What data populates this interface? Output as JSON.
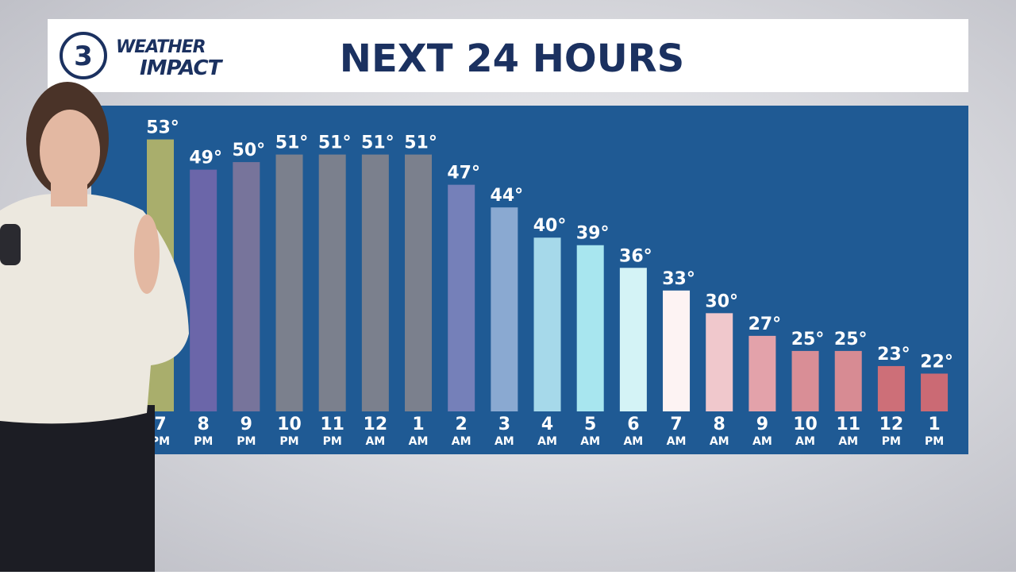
{
  "header": {
    "logo_number": "3",
    "logo_line1": "WEATHER",
    "logo_line2": "IMPACT"
  },
  "chart_data": {
    "type": "bar",
    "title": "NEXT 24 HOURS",
    "categories": [
      "7",
      "8",
      "9",
      "10",
      "11",
      "12",
      "1",
      "2",
      "3",
      "4",
      "5",
      "6",
      "7",
      "8",
      "9",
      "10",
      "11",
      "12",
      "1"
    ],
    "periods": [
      "PM",
      "PM",
      "PM",
      "PM",
      "PM",
      "AM",
      "AM",
      "AM",
      "AM",
      "AM",
      "AM",
      "AM",
      "AM",
      "AM",
      "AM",
      "AM",
      "AM",
      "PM",
      "PM"
    ],
    "values": [
      53,
      49,
      50,
      51,
      51,
      51,
      51,
      47,
      44,
      40,
      39,
      36,
      33,
      30,
      27,
      25,
      25,
      23,
      22
    ],
    "value_labels": [
      "53°",
      "49°",
      "50°",
      "51°",
      "51°",
      "51°",
      "51°",
      "47°",
      "44°",
      "40°",
      "39°",
      "36°",
      "33°",
      "30°",
      "27°",
      "25°",
      "25°",
      "23°",
      "22°"
    ],
    "colors": [
      "#a9ae6c",
      "#6b66a9",
      "#77749b",
      "#7b808d",
      "#7b808d",
      "#7b808d",
      "#7b808d",
      "#7580b9",
      "#8aa9d1",
      "#a6d9ea",
      "#a8e6ef",
      "#d4f3f6",
      "#fdf3f3",
      "#f0c8cc",
      "#e3a2aa",
      "#d98e96",
      "#d78b93",
      "#cd6f78",
      "#cb6a74"
    ],
    "ylim": [
      17,
      58
    ]
  }
}
